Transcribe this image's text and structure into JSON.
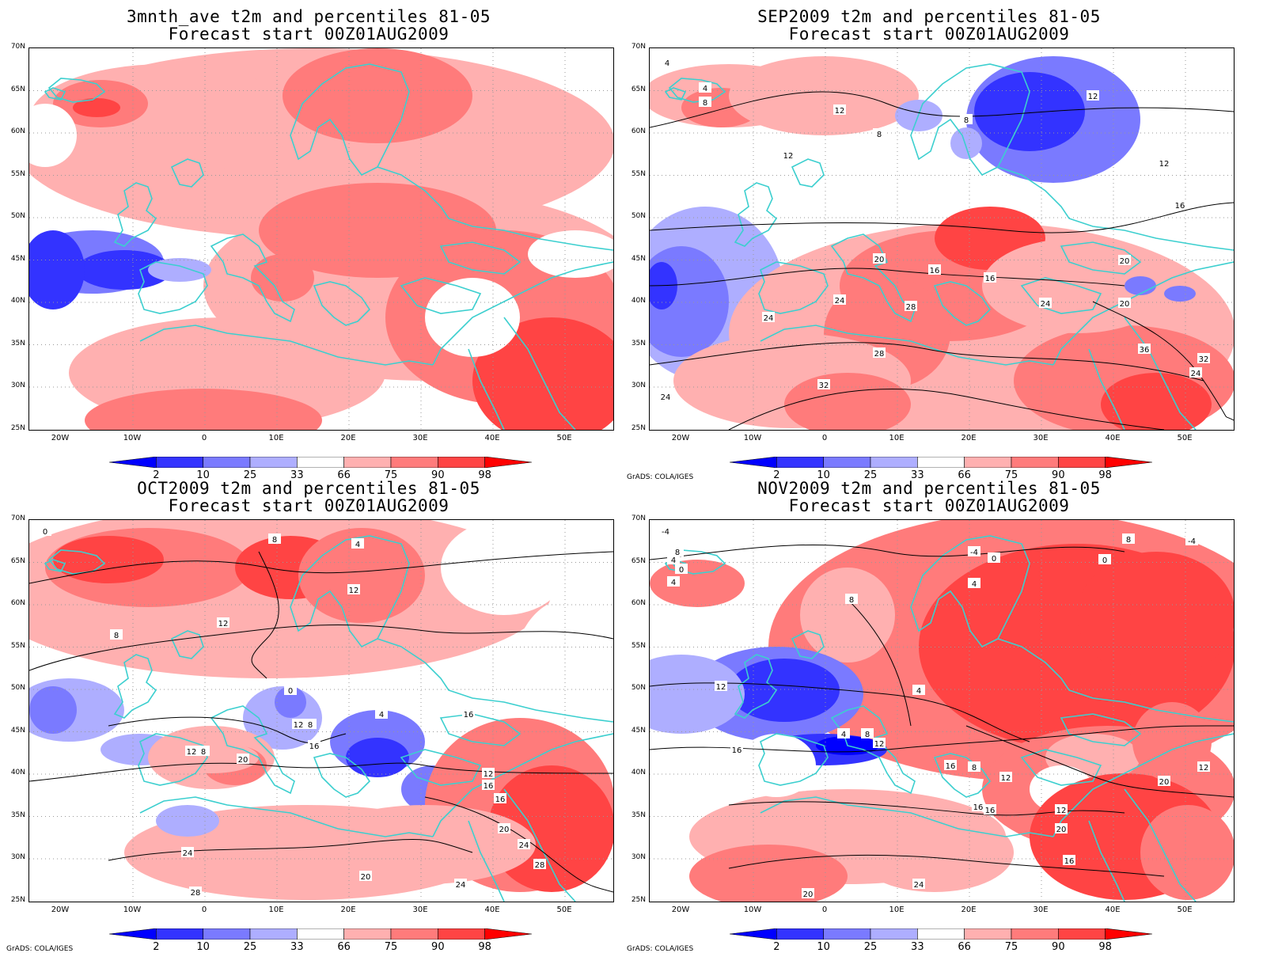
{
  "panels": [
    {
      "title1": "3mnth_ave t2m and percentiles 81-05",
      "title2": "Forecast start 00Z01AUG2009",
      "credit": "",
      "contours": []
    },
    {
      "title1": "SEP2009 t2m and percentiles 81-05",
      "title2": "Forecast start 00Z01AUG2009",
      "credit": "GrADS: COLA/IGES",
      "contours": [
        "4",
        "4",
        "8",
        "12",
        "8",
        "12",
        "8",
        "12",
        "12",
        "16",
        "20",
        "16",
        "16",
        "20",
        "24",
        "24",
        "28",
        "24",
        "20",
        "28",
        "32",
        "36",
        "24",
        "32",
        "24"
      ]
    },
    {
      "title1": "OCT2009 t2m and percentiles 81-05",
      "title2": "Forecast start 00Z01AUG2009",
      "credit": "GrADS: COLA/IGES",
      "contours": [
        "0",
        "4",
        "8",
        "12",
        "12",
        "8",
        "0",
        "4",
        "8",
        "16",
        "12",
        "12",
        "20",
        "16",
        "8",
        "16",
        "12",
        "16",
        "20",
        "24",
        "28",
        "20",
        "24",
        "28",
        "24"
      ]
    },
    {
      "title1": "NOV2009 t2m and percentiles 81-05",
      "title2": "Forecast start 00Z01AUG2009",
      "credit": "GrADS: COLA/IGES",
      "contours": [
        "-4",
        "4",
        "0",
        "4",
        "8",
        "-4",
        "0",
        "4",
        "8",
        "0",
        "8",
        "-4",
        "12",
        "16",
        "4",
        "4",
        "8",
        "12",
        "16",
        "12",
        "8",
        "16",
        "20",
        "24",
        "20",
        "16",
        "12",
        "16",
        "20",
        "12"
      ]
    }
  ],
  "y_labels": [
    "70N",
    "65N",
    "60N",
    "55N",
    "50N",
    "45N",
    "40N",
    "35N",
    "30N",
    "25N"
  ],
  "x_labels": [
    "20W",
    "10W",
    "0",
    "10E",
    "20E",
    "30E",
    "40E",
    "50E"
  ],
  "colorbar": {
    "labels": [
      "2",
      "10",
      "25",
      "33",
      "66",
      "75",
      "90",
      "98"
    ],
    "colors": [
      "#0000ff",
      "#3333ff",
      "#7a7aff",
      "#aeaeff",
      "#ffffff",
      "#ffb0b0",
      "#ff7b7b",
      "#ff4444",
      "#ff0000"
    ]
  },
  "coastline_color": "#3ccfcf"
}
